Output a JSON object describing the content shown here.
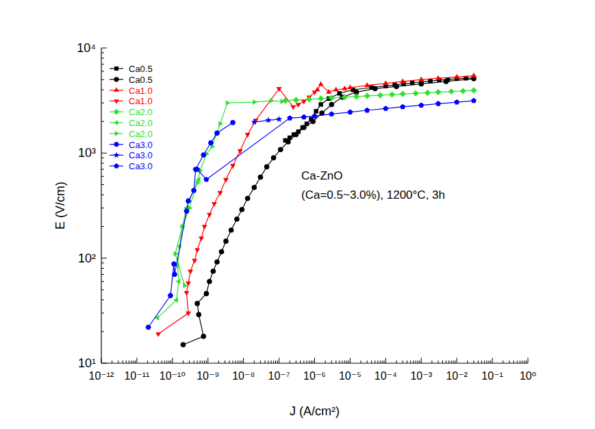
{
  "chart_data": {
    "type": "scatter",
    "x_label": "J (A/cm²)",
    "y_label": "E (V/cm)",
    "annotations": [
      "Ca-ZnO",
      "(Ca=0.5~3.0%), 1200°C, 3h"
    ],
    "log": true,
    "grid": false,
    "legend": "top-left",
    "xlim": [
      1e-12,
      1
    ],
    "ylim": [
      10,
      10000
    ],
    "xticks": [
      {
        "value": 1e-12,
        "label": "10⁻¹²"
      },
      {
        "value": 1e-11,
        "label": "10⁻¹¹"
      },
      {
        "value": 1e-10,
        "label": "10⁻¹⁰"
      },
      {
        "value": 1e-09,
        "label": "10⁻⁹"
      },
      {
        "value": 1e-08,
        "label": "10⁻⁸"
      },
      {
        "value": 1e-07,
        "label": "10⁻⁷"
      },
      {
        "value": 1e-06,
        "label": "10⁻⁶"
      },
      {
        "value": 1e-05,
        "label": "10⁻⁵"
      },
      {
        "value": 0.0001,
        "label": "10⁻⁴"
      },
      {
        "value": 0.001,
        "label": "10⁻³"
      },
      {
        "value": 0.01,
        "label": "10⁻²"
      },
      {
        "value": 0.1,
        "label": "10⁻¹"
      },
      {
        "value": 1,
        "label": "10⁰"
      }
    ],
    "yticks": [
      {
        "value": 10,
        "label": "10¹"
      },
      {
        "value": 100,
        "label": "10²"
      },
      {
        "value": 1000,
        "label": "10³"
      },
      {
        "value": 10000,
        "label": "10⁴"
      }
    ],
    "series": [
      {
        "name": "Ca0.5",
        "color": "#000000",
        "marker": "square",
        "line_style": "solid",
        "x": [
          1.5e-07,
          2e-07,
          2.6e-07,
          3.5e-07,
          4.6e-07,
          6e-07,
          8e-07,
          1.1e-06,
          1.5e-06,
          2.5e-06,
          5e-06,
          1.2e-05,
          4e-05,
          0.0001,
          0.00018,
          0.00032,
          0.00056,
          0.001,
          0.0018,
          0.0032,
          0.0056,
          0.01,
          0.018,
          0.03
        ],
        "values": [
          1320,
          1400,
          1500,
          1600,
          1750,
          1900,
          2100,
          2500,
          2900,
          3300,
          3700,
          4000,
          4200,
          4350,
          4450,
          4550,
          4650,
          4750,
          4850,
          4950,
          5000,
          5100,
          5150,
          5200
        ]
      },
      {
        "name": "Ca0.5",
        "color": "#000000",
        "marker": "circle",
        "line_style": "solid",
        "x": [
          2e-10,
          7.5e-10,
          5.5e-10,
          5e-10,
          9e-10,
          1.1e-09,
          1.4e-09,
          1.8e-09,
          2.4e-09,
          3.2e-09,
          4.5e-09,
          6.5e-09,
          9e-09,
          1.3e-08,
          2e-08,
          3e-08,
          4.5e-08,
          7e-08,
          1.1e-07,
          1.8e-07,
          3e-07,
          5e-07,
          9e-07,
          1.6e-06,
          3e-06,
          6e-06,
          1.5e-05,
          5e-05,
          0.0002,
          0.001,
          0.005,
          0.03
        ],
        "values": [
          15,
          18,
          29,
          37,
          46,
          60,
          75,
          92,
          115,
          145,
          185,
          235,
          290,
          370,
          470,
          590,
          740,
          900,
          1080,
          1280,
          1500,
          1750,
          2000,
          2400,
          2900,
          3400,
          3800,
          4100,
          4300,
          4550,
          4800,
          5100
        ]
      },
      {
        "name": "Ca1.0",
        "color": "#ff0000",
        "marker": "triangle-up",
        "line_style": "solid",
        "x": [
          1.2e-06,
          1.5e-06,
          2.5e-06,
          4e-06,
          7e-06,
          1e-05,
          3e-05,
          0.0001,
          0.0003,
          0.001,
          0.003,
          0.01,
          0.03
        ],
        "values": [
          4000,
          4500,
          3800,
          4000,
          4100,
          4200,
          4400,
          4600,
          4800,
          5000,
          5150,
          5300,
          5450
        ]
      },
      {
        "name": "Ca1.0",
        "color": "#ff0000",
        "marker": "triangle-down",
        "line_style": "solid",
        "x": [
          4e-11,
          2.8e-10,
          2.5e-10,
          2.8e-10,
          3.2e-10,
          4.2e-10,
          5e-10,
          6.5e-10,
          8e-10,
          1.1e-09,
          1.5e-09,
          2.2e-09,
          3.2e-09,
          5e-09,
          8e-09,
          1.3e-08,
          2.2e-08,
          1e-07,
          2.5e-07,
          3.5e-07,
          5e-07,
          7e-07,
          1e-06
        ],
        "values": [
          19,
          30,
          47,
          58,
          75,
          95,
          120,
          155,
          200,
          260,
          330,
          420,
          560,
          760,
          1050,
          1500,
          2050,
          4100,
          2750,
          2900,
          3100,
          3400,
          3800
        ]
      },
      {
        "name": "Ca2.0",
        "color": "#2ee02e",
        "marker": "diamond",
        "line_style": "solid",
        "x": [
          1.5e-07,
          3e-07,
          7e-07,
          1.5e-06,
          3e-06,
          7e-06,
          1.5e-05,
          3e-05,
          7e-05,
          0.00015,
          0.0003,
          0.0007,
          0.0015,
          0.003,
          0.007,
          0.015,
          0.03
        ],
        "values": [
          3150,
          3200,
          3250,
          3300,
          3350,
          3400,
          3450,
          3500,
          3550,
          3600,
          3650,
          3700,
          3750,
          3800,
          3850,
          3900,
          3950
        ]
      },
      {
        "name": "Ca2.0",
        "color": "#2ee02e",
        "marker": "triangle-left",
        "line_style": "solid",
        "x": [
          3.8e-11,
          1.3e-10,
          1.5e-10,
          1.4e-10,
          1.6e-10,
          1.9e-10,
          2.5e-10,
          4e-10,
          5.5e-10
        ],
        "values": [
          27,
          40,
          60,
          85,
          130,
          200,
          300,
          450,
          560
        ]
      },
      {
        "name": "Ca2.0",
        "color": "#2ee02e",
        "marker": "triangle-right",
        "line_style": "solid",
        "x": [
          2.2e-10,
          1.2e-10,
          1.9e-10,
          3e-10,
          5e-10,
          6e-10,
          9e-10,
          1.3e-09,
          1.7e-09,
          2.2e-09,
          3.5e-09,
          2e-08,
          6e-08,
          1.2e-07
        ],
        "values": [
          55,
          110,
          200,
          300,
          520,
          680,
          980,
          1150,
          1500,
          1900,
          3000,
          3050,
          3150,
          3100
        ]
      },
      {
        "name": "Ca3.0",
        "color": "#0000ff",
        "marker": "hexagon",
        "line_style": "solid",
        "x": [
          2.1e-11,
          8.8e-11,
          1.1e-10,
          1.15e-10,
          2.5e-10,
          2.8e-10,
          4e-10,
          4.5e-10,
          7.5e-10,
          1.2e-09,
          1.8e-09,
          5e-09
        ],
        "values": [
          22,
          44,
          88,
          70,
          280,
          350,
          440,
          700,
          960,
          1250,
          1550,
          1950
        ]
      },
      {
        "name": "Ca3.0",
        "color": "#0000ff",
        "marker": "star",
        "line_style": "solid",
        "x": [
          2e-08,
          5e-08,
          1e-07
        ],
        "values": [
          1970,
          2050,
          2100
        ]
      },
      {
        "name": "Ca3.0",
        "color": "#0000ff",
        "marker": "pentagon",
        "line_style": "solid",
        "x": [
          5e-10,
          9e-10,
          2e-07,
          5e-07,
          1e-06,
          3e-06,
          1e-05,
          3e-05,
          0.0001,
          0.0003,
          0.001,
          0.003,
          0.01,
          0.03
        ],
        "values": [
          700,
          560,
          2150,
          2200,
          2250,
          2350,
          2450,
          2550,
          2650,
          2750,
          2850,
          2950,
          3050,
          3150
        ]
      }
    ]
  }
}
